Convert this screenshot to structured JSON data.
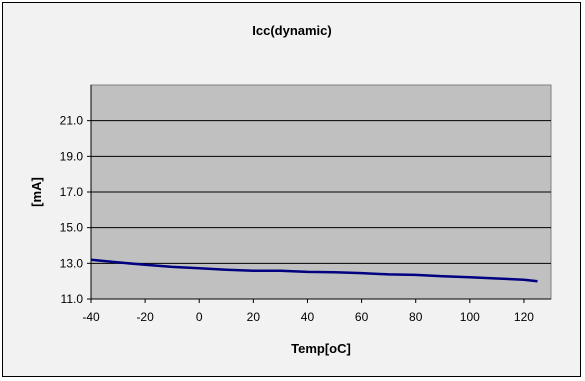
{
  "chart_data": {
    "type": "line",
    "title": "Icc(dynamic)",
    "xlabel": "Temp[oC]",
    "ylabel": "[mA]",
    "xlim": [
      -40,
      130
    ],
    "ylim": [
      11.0,
      23.0
    ],
    "x_ticks": [
      -40,
      -20,
      0,
      20,
      40,
      60,
      80,
      100,
      120
    ],
    "x_tick_labels": [
      "-40",
      "-20",
      "0",
      "20",
      "40",
      "60",
      "80",
      "100",
      "120"
    ],
    "y_ticks": [
      11.0,
      13.0,
      15.0,
      17.0,
      19.0,
      21.0
    ],
    "y_tick_labels": [
      "11.0",
      "13.0",
      "15.0",
      "17.0",
      "19.0",
      "21.0"
    ],
    "grid": "horizontal",
    "legend": "none",
    "series": [
      {
        "x": [
          -40,
          -30,
          -20,
          -10,
          0,
          10,
          20,
          30,
          40,
          50,
          60,
          70,
          80,
          90,
          100,
          110,
          120,
          125
        ],
        "y": [
          13.2,
          13.05,
          12.92,
          12.8,
          12.72,
          12.64,
          12.58,
          12.58,
          12.52,
          12.5,
          12.45,
          12.38,
          12.35,
          12.28,
          12.22,
          12.15,
          12.08,
          12.0
        ]
      }
    ],
    "colors": {
      "line": "#000080",
      "plot_background": "#c0c0c0",
      "chart_background": "#f2f2f2",
      "gridline": "#000000"
    }
  }
}
